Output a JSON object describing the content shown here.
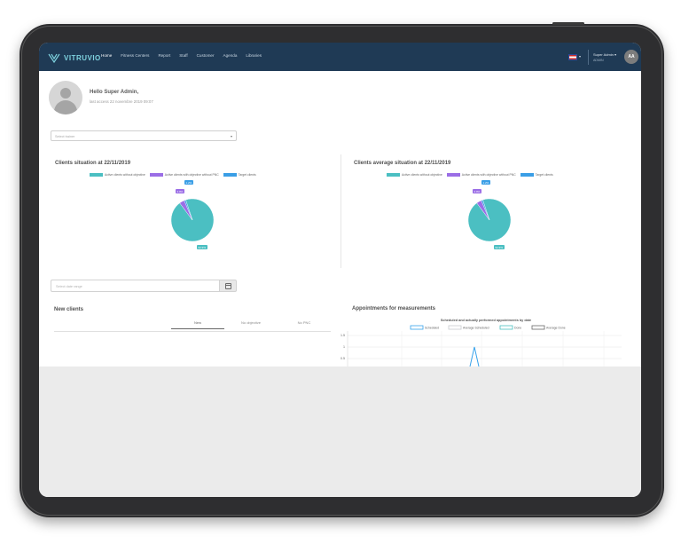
{
  "colors": {
    "navbar": "#1f3a55",
    "teal": "#4bbfc2",
    "purple": "#9b6ee6",
    "blue": "#3a9ee6",
    "scheduled": "#36a2eb",
    "average_scheduled": "#c9cbcf",
    "done": "#4bc0c0",
    "average_done": "#666666"
  },
  "navbar": {
    "logo_text": "VITRUVIO",
    "items": [
      "Home",
      "Fitness Centers",
      "Report",
      "Staff",
      "Customer",
      "Agenda",
      "Libraries"
    ],
    "active_index": 0,
    "user_name": "Super Admin ▾",
    "user_role": "ADMIN",
    "avatar_initials": "AA"
  },
  "profile": {
    "greeting": "Hello Super Admin,",
    "last_access": "last access 22 novembre 2019 09:07"
  },
  "trainer_select": {
    "placeholder": "Select trainer"
  },
  "panels": {
    "left": {
      "title": "Clients situation at 22/11/2019",
      "legend": [
        "Active clients without objective",
        "Active clients with objective without PNC",
        "Target clients"
      ],
      "slices": [
        {
          "label": "94.9%",
          "value": 94.9,
          "color": "#4bbfc2"
        },
        {
          "label": "3.9%",
          "value": 3.9,
          "color": "#9b6ee6"
        },
        {
          "label": "1.2%",
          "value": 1.2,
          "color": "#3a9ee6"
        }
      ]
    },
    "right": {
      "title": "Clients average situation at 22/11/2019",
      "legend": [
        "Active clients without objective",
        "Active clients with objective without PNC",
        "Target clients"
      ],
      "slices": [
        {
          "label": "94.9%",
          "value": 94.9,
          "color": "#4bbfc2"
        },
        {
          "label": "3.9%",
          "value": 3.9,
          "color": "#9b6ee6"
        },
        {
          "label": "1.2%",
          "value": 1.2,
          "color": "#3a9ee6"
        }
      ]
    }
  },
  "date_range": {
    "placeholder": "Select date range"
  },
  "new_clients": {
    "title": "New clients",
    "tabs": [
      "New",
      "No objective",
      "No PNC"
    ],
    "active_tab": 0
  },
  "appointments": {
    "title": "Appointments for measurements",
    "chart_data": {
      "type": "line",
      "title": "Scheduled and actually performed appointments by date",
      "series": [
        {
          "name": "Scheduled",
          "color": "#36a2eb"
        },
        {
          "name": "Average Scheduled",
          "color": "#c9cbcf"
        },
        {
          "name": "Done",
          "color": "#4bc0c0"
        },
        {
          "name": "Average Done",
          "color": "#666666"
        }
      ],
      "y_ticks": [
        "1.5",
        "1",
        "0.5"
      ],
      "peak": {
        "x_index": 2,
        "y": 1
      }
    }
  }
}
